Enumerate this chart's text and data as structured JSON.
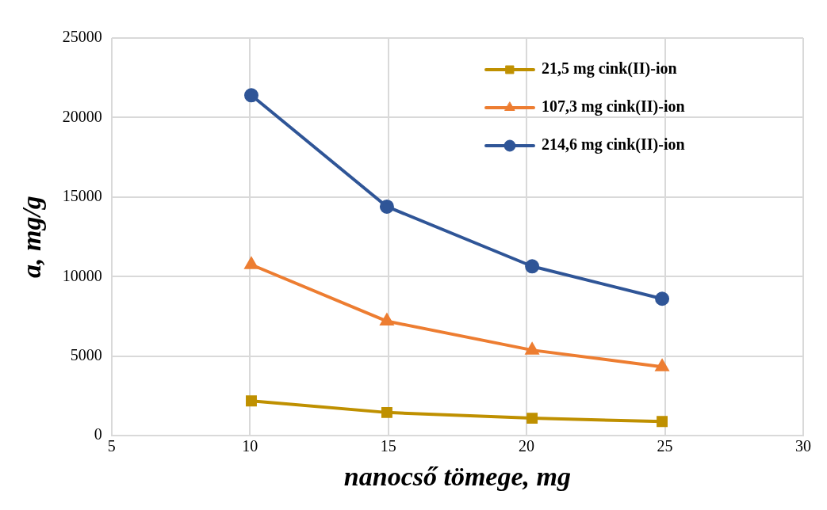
{
  "chart_data": {
    "type": "line",
    "xlabel": "nanocső tömege, mg",
    "ylabel": "a, mg/g",
    "xlim": [
      5,
      30
    ],
    "xticks": [
      5,
      10,
      15,
      20,
      25,
      30
    ],
    "ylim": [
      0,
      25000
    ],
    "yticks": [
      0,
      5000,
      10000,
      15000,
      20000,
      25000
    ],
    "grid": true,
    "legend": "top right",
    "line_style": "solid",
    "series": [
      {
        "name": "21,5 mg cink(II)-ion",
        "color": "#bf9000",
        "marker": "square",
        "x": [
          10.05,
          14.95,
          20.2,
          24.9
        ],
        "values": [
          2190,
          1460,
          1100,
          890
        ]
      },
      {
        "name": "107,3 mg cink(II)-ion",
        "color": "#ed7d31",
        "marker": "triangle",
        "x": [
          10.05,
          14.95,
          20.2,
          24.9
        ],
        "values": [
          10750,
          7200,
          5380,
          4330
        ]
      },
      {
        "name": "214,6 mg cink(II)-ion",
        "color": "#2f5597",
        "marker": "circle",
        "x": [
          10.05,
          14.95,
          20.2,
          24.9
        ],
        "values": [
          21400,
          14400,
          10650,
          8610
        ]
      }
    ]
  }
}
